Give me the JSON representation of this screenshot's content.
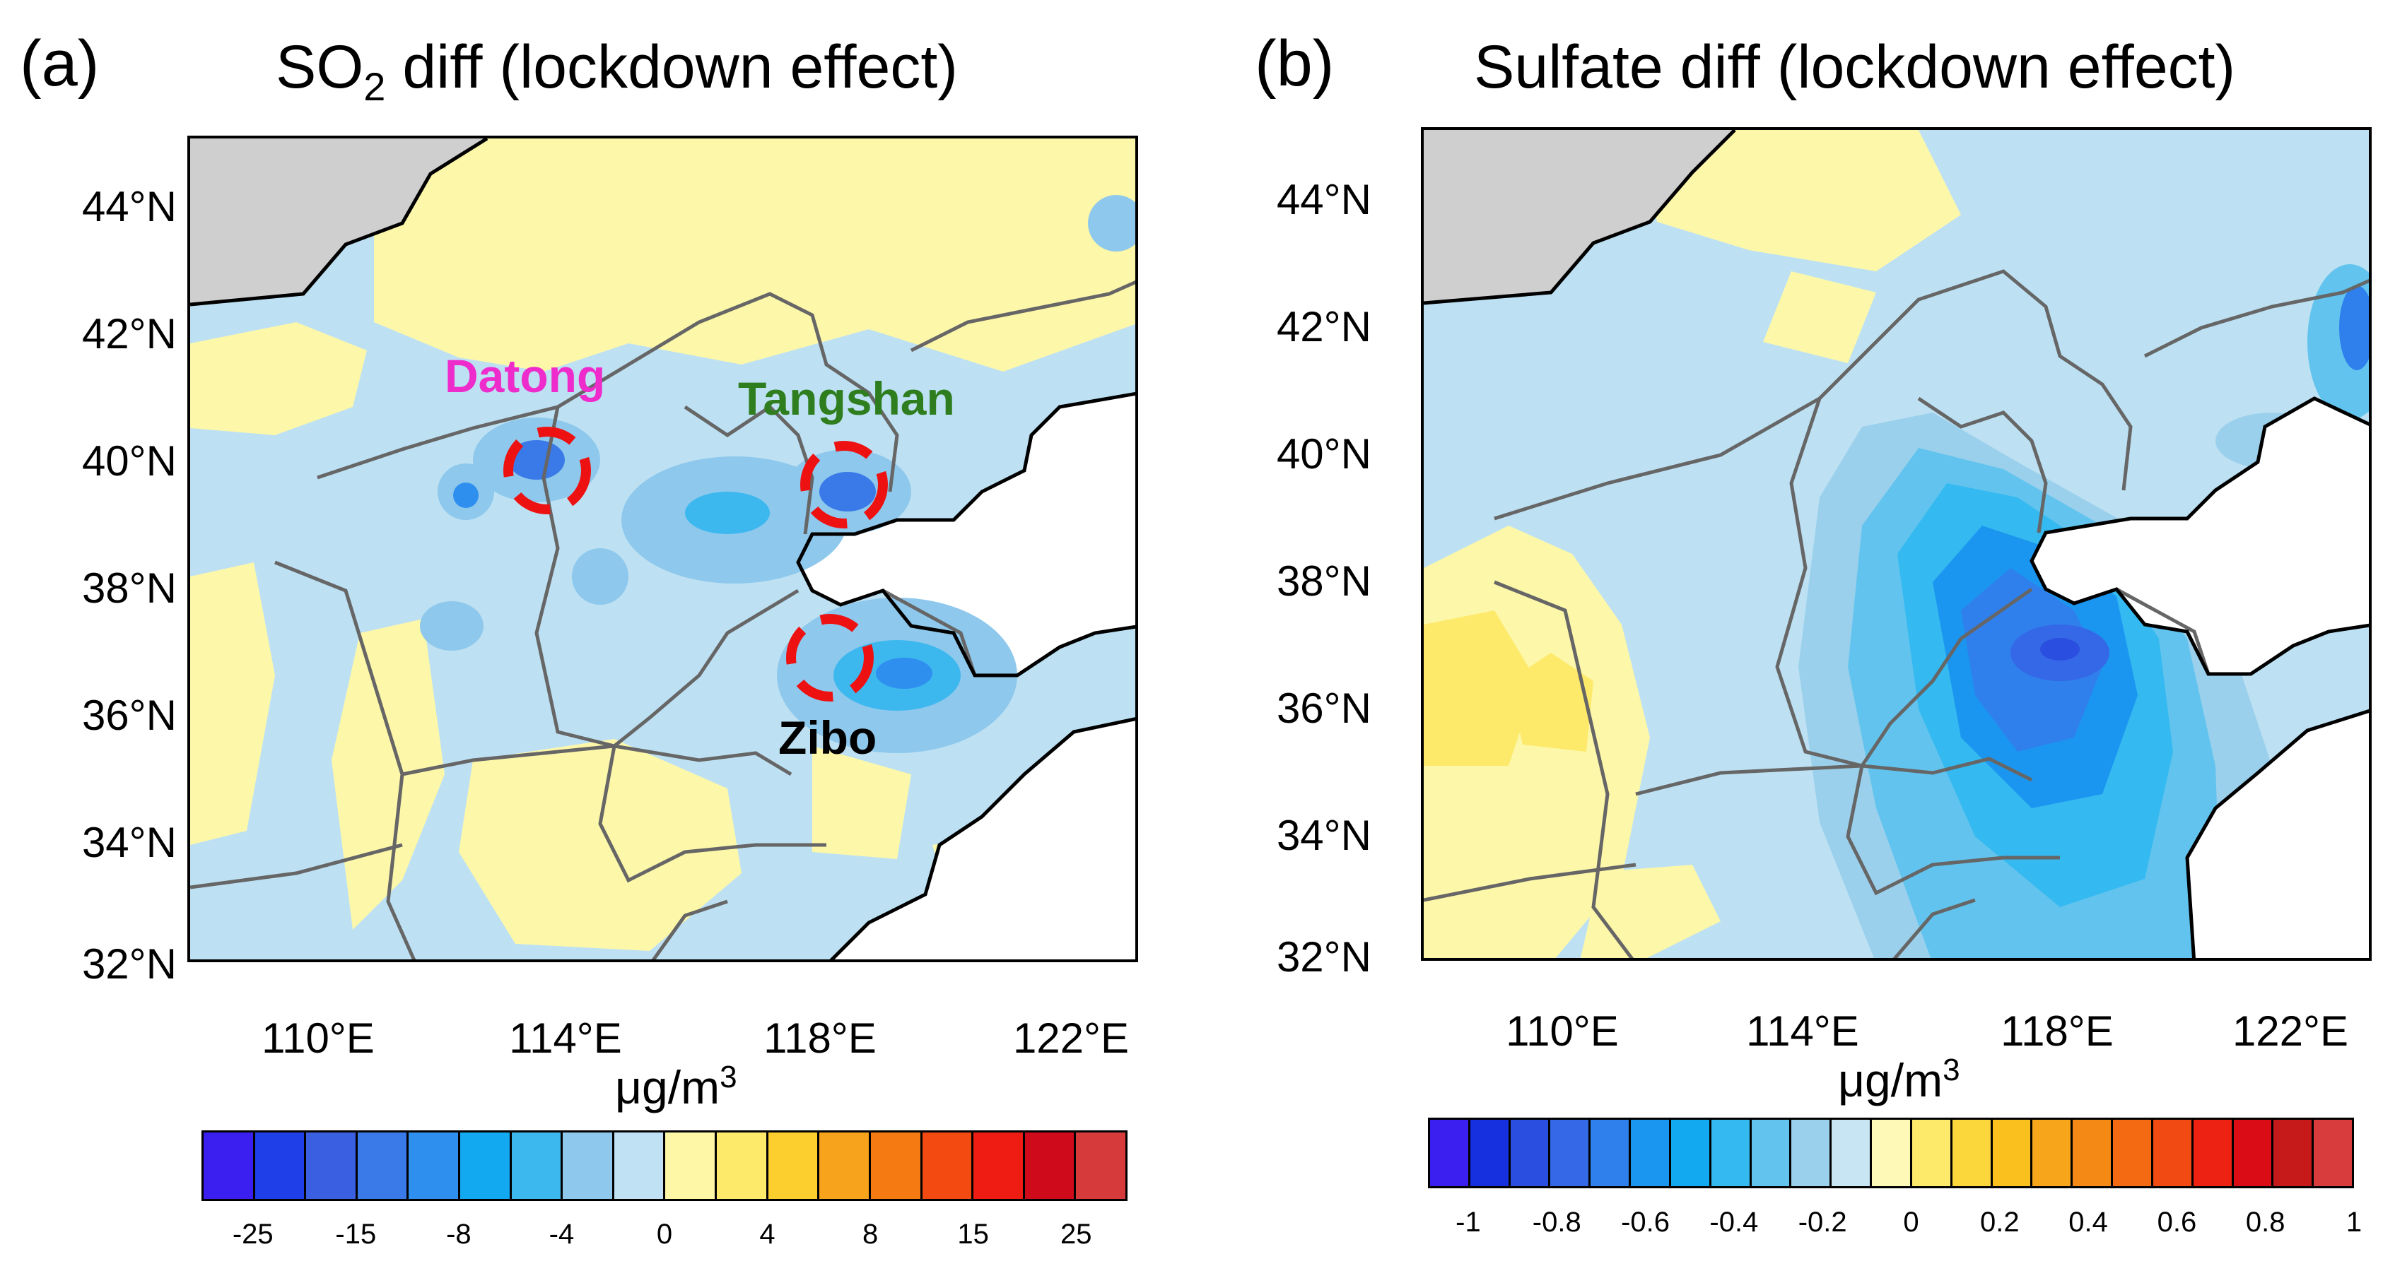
{
  "panels": [
    {
      "letter": "(a)",
      "title_main": "SO",
      "title_sub": "2",
      "title_rest": " diff (lockdown effect)",
      "lat_labels": [
        "44°N",
        "42°N",
        "40°N",
        "38°N",
        "36°N",
        "34°N",
        "32°N"
      ],
      "lon_labels": [
        "110°E",
        "114°E",
        "118°E",
        "122°E"
      ],
      "unit": "μg/m",
      "unit_sup": "3",
      "colorbar_labels": [
        "-25",
        "-15",
        "-8",
        "-4",
        "0",
        "4",
        "8",
        "15",
        "25"
      ],
      "cities": [
        {
          "name": "Datong",
          "color": "#ee2ccc"
        },
        {
          "name": "Tangshan",
          "color": "#2e7d1e"
        },
        {
          "name": "Zibo",
          "color": "#000000"
        }
      ]
    },
    {
      "letter": "(b)",
      "title": "Sulfate diff (lockdown effect)",
      "lat_labels": [
        "44°N",
        "42°N",
        "40°N",
        "38°N",
        "36°N",
        "34°N",
        "32°N"
      ],
      "lon_labels": [
        "110°E",
        "114°E",
        "118°E",
        "122°E"
      ],
      "unit": "μg/m",
      "unit_sup": "3",
      "colorbar_labels": [
        "-1",
        "-0.8",
        "-0.6",
        "-0.4",
        "-0.2",
        "0",
        "0.2",
        "0.4",
        "0.6",
        "0.8",
        "1"
      ]
    }
  ],
  "colors": {
    "colorbar_a": [
      "#3a1ff0",
      "#1f3fe8",
      "#3a5fe0",
      "#3a7ae8",
      "#2f8fef",
      "#12a9f1",
      "#3cb8ef",
      "#8ec8ec",
      "#bfe1f3",
      "#fdf7a6",
      "#fde96a",
      "#fcce2e",
      "#f8a31c",
      "#f57a12",
      "#f24a10",
      "#ee1c12",
      "#cf0a1a",
      "#d63a3a"
    ],
    "colorbar_b": [
      "#3a1ff0",
      "#1630e0",
      "#2a4fe0",
      "#3468e6",
      "#2f80ec",
      "#1b96f0",
      "#12a9f1",
      "#34b9f0",
      "#62c4ee",
      "#9bd0ec",
      "#c8e5f3",
      "#fef9b6",
      "#fde96a",
      "#fbd73c",
      "#f9c01e",
      "#f7a51a",
      "#f58915",
      "#f36a12",
      "#f14a12",
      "#ee2212",
      "#da0c16",
      "#c61a1a",
      "#d83c3c"
    ],
    "land_negative_light": "#bde1f3",
    "land_positive_light": "#fdf7aa",
    "ocean": "#ffffff",
    "mongolia": "#cfcfcf",
    "ring": "#ee1111"
  }
}
